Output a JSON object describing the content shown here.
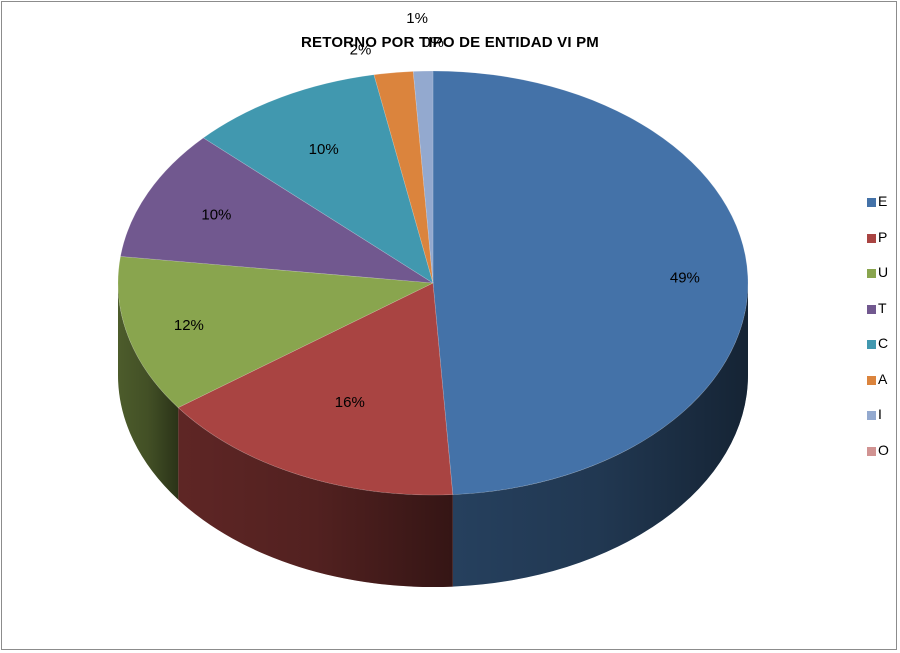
{
  "chart_data": {
    "type": "pie",
    "title": "RETORNO POR TIPO DE ENTIDAD VI PM",
    "categories": [
      "E",
      "P",
      "U",
      "T",
      "C",
      "A",
      "I",
      "O"
    ],
    "values": [
      49,
      16,
      12,
      10,
      10,
      2,
      1,
      0
    ],
    "data_labels": [
      "49%",
      "16%",
      "12%",
      "10%",
      "10%",
      "2%",
      "1%",
      "0%"
    ],
    "colors": [
      "#4472A8",
      "#A94442",
      "#89A54E",
      "#71588F",
      "#4198AF",
      "#DB843D",
      "#93A9CF",
      "#D19392"
    ],
    "legend_position": "right",
    "style": "3d"
  }
}
